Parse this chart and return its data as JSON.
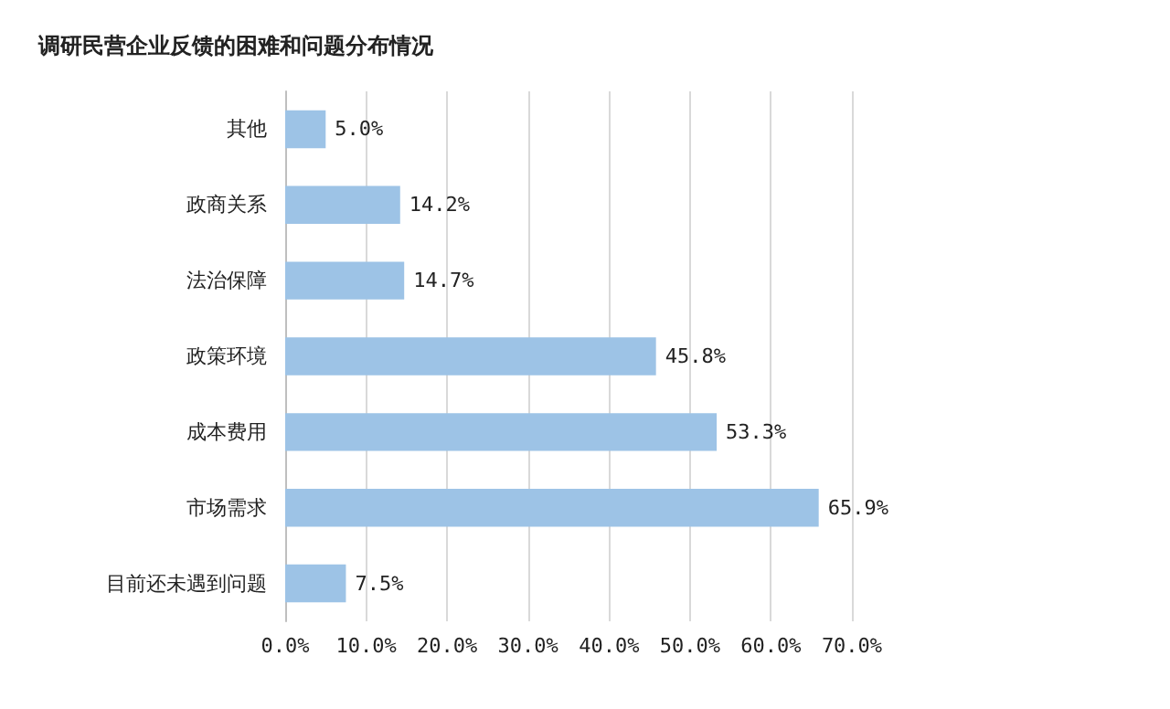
{
  "chart_data": {
    "type": "bar",
    "orientation": "horizontal",
    "title": "调研民营企业反馈的困难和问题分布情况",
    "categories": [
      "其他",
      "政商关系",
      "法治保障",
      "政策环境",
      "成本费用",
      "市场需求",
      "目前还未遇到问题"
    ],
    "values": [
      5.0,
      14.2,
      14.7,
      45.8,
      53.3,
      65.9,
      7.5
    ],
    "value_labels": [
      "5.0%",
      "14.2%",
      "14.7%",
      "45.8%",
      "53.3%",
      "65.9%",
      "7.5%"
    ],
    "color": "#9dc3e6",
    "xlim": [
      0,
      70
    ],
    "xticks": [
      {
        "value": 0,
        "label": "0.0%"
      },
      {
        "value": 10,
        "label": "10.0%"
      },
      {
        "value": 20,
        "label": "20.0%"
      },
      {
        "value": 30,
        "label": "30.0%"
      },
      {
        "value": 40,
        "label": "40.0%"
      },
      {
        "value": 50,
        "label": "50.0%"
      },
      {
        "value": 60,
        "label": "60.0%"
      },
      {
        "value": 70,
        "label": "70.0%"
      }
    ],
    "grid": "x"
  }
}
